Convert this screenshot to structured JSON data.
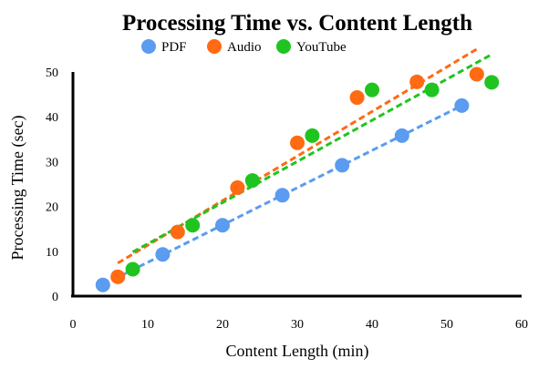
{
  "chart_data": {
    "type": "scatter",
    "title": "Processing Time vs. Content Length",
    "xlabel": "Content Length (min)",
    "ylabel": "Processing Time (sec)",
    "xlim": [
      0,
      60
    ],
    "ylim": [
      0,
      50
    ],
    "xticks": [
      "0",
      "10",
      "20",
      "30",
      "40",
      "50",
      "60"
    ],
    "yticks": [
      "0",
      "10",
      "20",
      "30",
      "40",
      "50"
    ],
    "grid": false,
    "legend_position": "top-center",
    "trendlines": "dashed linear fit per series",
    "series": [
      {
        "name": "PDF",
        "color": "#5b9bf0",
        "x": [
          4,
          12,
          20,
          28,
          36,
          44,
          52
        ],
        "y": [
          2.5,
          9.3,
          15.8,
          22.5,
          29.2,
          35.8,
          42.5
        ]
      },
      {
        "name": "Audio",
        "color": "#ff6a13",
        "x": [
          6,
          14,
          22,
          30,
          38,
          46,
          54
        ],
        "y": [
          4.3,
          14.3,
          24.2,
          34.2,
          44.3,
          47.8,
          49.5
        ]
      },
      {
        "name": "YouTube",
        "color": "#20c420",
        "x": [
          8,
          16,
          24,
          32,
          40,
          48,
          56
        ],
        "y": [
          6.0,
          15.8,
          25.8,
          35.8,
          46.0,
          46.0,
          47.7
        ]
      }
    ]
  }
}
